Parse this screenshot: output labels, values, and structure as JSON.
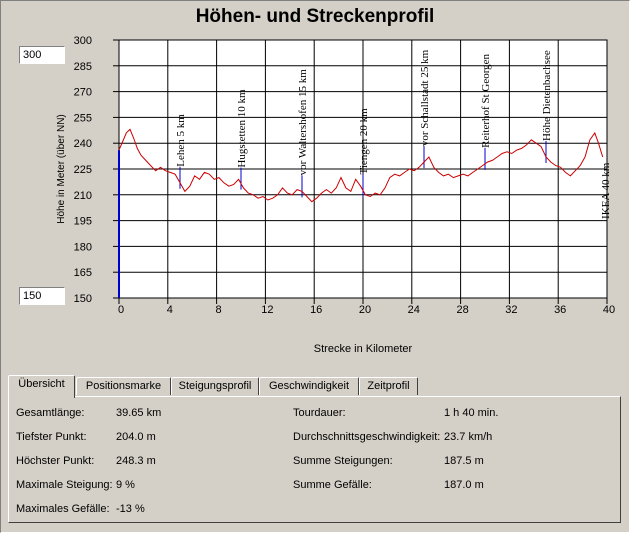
{
  "window": {
    "title": "Höhen- und Streckenprofil"
  },
  "y_range_inputs": {
    "max": "300",
    "min": "150"
  },
  "tabs": [
    "Übersicht",
    "Positionsmarke",
    "Steigungsprofil",
    "Geschwindigkeit",
    "Zeitprofil"
  ],
  "stats": {
    "left": [
      {
        "label": "Gesamtlänge:",
        "value": "39.65 km"
      },
      {
        "label": "Tiefster Punkt:",
        "value": "204.0 m"
      },
      {
        "label": "Höchster Punkt:",
        "value": "248.3 m"
      },
      {
        "label": "Maximale Steigung:",
        "value": "9 %"
      },
      {
        "label": "Maximales Gefälle:",
        "value": "-13 %"
      }
    ],
    "right": [
      {
        "label": "Tourdauer:",
        "value": "1 h 40 min."
      },
      {
        "label": "Durchschnittsgeschwindigkeit:",
        "value": "23.7 km/h"
      },
      {
        "label": "Summe Steigungen:",
        "value": "187.5 m"
      },
      {
        "label": "Summe Gefälle:",
        "value": "187.0 m"
      }
    ]
  },
  "colors": {
    "profile": "#cc0000",
    "marker": "#0000cc",
    "grid": "#000000"
  },
  "chart_data": {
    "type": "line",
    "xlabel": "Strecke in Kilometer",
    "ylabel": "Höhe in Meter (über NN)",
    "xlim": [
      0,
      40
    ],
    "ylim": [
      150,
      300
    ],
    "x_ticks": [
      "0",
      "4",
      "8",
      "12",
      "16",
      "20",
      "24",
      "28",
      "32",
      "36",
      "40"
    ],
    "y_ticks": [
      "300",
      "285",
      "270",
      "255",
      "240",
      "225",
      "210",
      "195",
      "180",
      "165",
      "150"
    ],
    "series": [
      {
        "x": [
          0,
          0.3,
          0.6,
          0.9,
          1.2,
          1.5,
          1.8,
          2.2,
          2.6,
          3.0,
          3.4,
          3.8,
          4.2,
          4.6,
          5.0,
          5.4,
          5.8,
          6.2,
          6.6,
          7.0,
          7.4,
          7.8,
          8.2,
          8.6,
          9.0,
          9.4,
          9.8,
          10.2,
          10.6,
          11.0,
          11.4,
          11.8,
          12.2,
          12.6,
          13.0,
          13.4,
          13.8,
          14.2,
          14.6,
          15.0,
          15.4,
          15.8,
          16.2,
          16.6,
          17.0,
          17.4,
          17.8,
          18.2,
          18.6,
          19.0,
          19.4,
          19.8,
          20.2,
          20.6,
          21.0,
          21.4,
          21.8,
          22.2,
          22.6,
          23.0,
          23.4,
          23.8,
          24.2,
          24.6,
          25.0,
          25.4,
          25.8,
          26.2,
          26.6,
          27.0,
          27.4,
          27.8,
          28.2,
          28.6,
          29.0,
          29.4,
          29.8,
          30.2,
          30.6,
          31.0,
          31.4,
          31.8,
          32.2,
          32.6,
          33.0,
          33.4,
          33.8,
          34.2,
          34.6,
          35.0,
          35.4,
          35.8,
          36.2,
          36.6,
          37.0,
          37.4,
          37.8,
          38.2,
          38.6,
          39.0,
          39.3,
          39.65
        ],
        "y": [
          236,
          241,
          246,
          248,
          243,
          237,
          233,
          230,
          227,
          224,
          226,
          224,
          223,
          222,
          217,
          212,
          215,
          221,
          219,
          223,
          222,
          219,
          220,
          217,
          215,
          216,
          219,
          214,
          211,
          210,
          208,
          209,
          207,
          208,
          210,
          214,
          211,
          210,
          213,
          212,
          209,
          206,
          208,
          211,
          213,
          211,
          214,
          220,
          214,
          212,
          219,
          215,
          210,
          209,
          211,
          210,
          214,
          220,
          222,
          221,
          223,
          225,
          224,
          226,
          229,
          232,
          226,
          223,
          221,
          222,
          220,
          221,
          222,
          221,
          223,
          225,
          227,
          229,
          230,
          232,
          234,
          235,
          234,
          236,
          237,
          239,
          242,
          240,
          238,
          232,
          229,
          227,
          226,
          223,
          221,
          224,
          227,
          232,
          242,
          246,
          240,
          232
        ]
      }
    ],
    "markers": [
      {
        "x": 5,
        "label": "Lehen 5 km"
      },
      {
        "x": 10,
        "label": "Hugstetten 10 km"
      },
      {
        "x": 15,
        "label": "vor Waltershofen 15 km"
      },
      {
        "x": 20,
        "label": "Tiengen 20 km"
      },
      {
        "x": 25,
        "label": "vor Schallstadt 25 km"
      },
      {
        "x": 30,
        "label": "Reiterhof St Georgen"
      },
      {
        "x": 35,
        "label": "Höhe Dietenbachsee"
      },
      {
        "x": 40,
        "label": "IKEA 40 km"
      }
    ]
  }
}
